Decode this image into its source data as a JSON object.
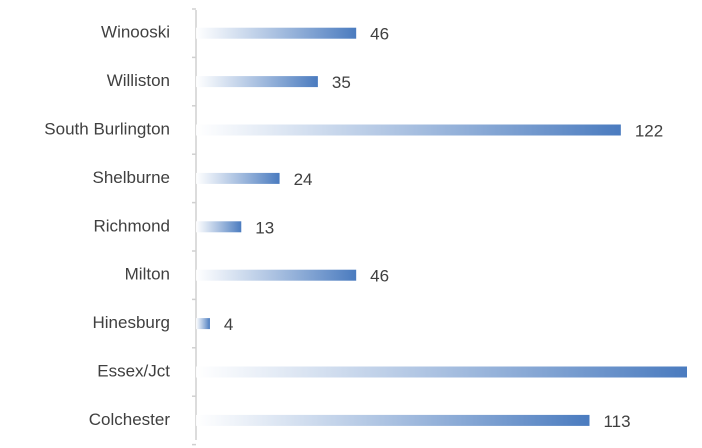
{
  "chart_data": {
    "type": "bar",
    "orientation": "horizontal",
    "categories": [
      "Winooski",
      "Williston",
      "South Burlington",
      "Shelburne",
      "Richmond",
      "Milton",
      "Hinesburg",
      "Essex/Jct",
      "Colchester"
    ],
    "values": [
      46,
      35,
      122,
      24,
      13,
      46,
      4,
      141,
      113
    ],
    "color": "#4a7bbf"
  }
}
